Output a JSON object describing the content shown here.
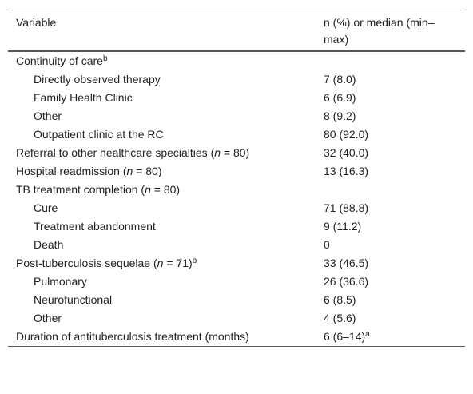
{
  "table": {
    "header": [
      "Variable",
      "n (%) or median (min–max)"
    ],
    "rows": [
      {
        "indent": false,
        "label": [
          {
            "text": "Continuity of care"
          },
          {
            "text": "b",
            "style": "sup"
          }
        ],
        "value": [
          {
            "text": ""
          }
        ]
      },
      {
        "indent": true,
        "label": [
          {
            "text": "Directly observed therapy"
          }
        ],
        "value": [
          {
            "text": "7 (8.0)"
          }
        ]
      },
      {
        "indent": true,
        "label": [
          {
            "text": "Family Health Clinic"
          }
        ],
        "value": [
          {
            "text": "6 (6.9)"
          }
        ]
      },
      {
        "indent": true,
        "label": [
          {
            "text": "Other"
          }
        ],
        "value": [
          {
            "text": "8 (9.2)"
          }
        ]
      },
      {
        "indent": true,
        "label": [
          {
            "text": "Outpatient clinic at the RC"
          }
        ],
        "value": [
          {
            "text": "80 (92.0)"
          }
        ]
      },
      {
        "indent": false,
        "label": [
          {
            "text": "Referral to other healthcare specialties ("
          },
          {
            "text": "n",
            "style": "italic"
          },
          {
            "text": " = 80)"
          }
        ],
        "value": [
          {
            "text": "32 (40.0)"
          }
        ]
      },
      {
        "indent": false,
        "label": [
          {
            "text": "Hospital readmission ("
          },
          {
            "text": "n",
            "style": "italic"
          },
          {
            "text": " = 80)"
          }
        ],
        "value": [
          {
            "text": "13 (16.3)"
          }
        ]
      },
      {
        "indent": false,
        "label": [
          {
            "text": "TB treatment completion ("
          },
          {
            "text": "n",
            "style": "italic"
          },
          {
            "text": " = 80)"
          }
        ],
        "value": [
          {
            "text": ""
          }
        ]
      },
      {
        "indent": true,
        "label": [
          {
            "text": "Cure"
          }
        ],
        "value": [
          {
            "text": "71 (88.8)"
          }
        ]
      },
      {
        "indent": true,
        "label": [
          {
            "text": "Treatment abandonment"
          }
        ],
        "value": [
          {
            "text": "9 (11.2)"
          }
        ]
      },
      {
        "indent": true,
        "label": [
          {
            "text": "Death"
          }
        ],
        "value": [
          {
            "text": "0"
          }
        ]
      },
      {
        "indent": false,
        "label": [
          {
            "text": "Post-tuberculosis sequelae ("
          },
          {
            "text": "n",
            "style": "italic"
          },
          {
            "text": " = 71)"
          },
          {
            "text": "b",
            "style": "sup"
          }
        ],
        "value": [
          {
            "text": "33 (46.5)"
          }
        ]
      },
      {
        "indent": true,
        "label": [
          {
            "text": "Pulmonary"
          }
        ],
        "value": [
          {
            "text": "26 (36.6)"
          }
        ]
      },
      {
        "indent": true,
        "label": [
          {
            "text": "Neurofunctional"
          }
        ],
        "value": [
          {
            "text": "6 (8.5)"
          }
        ]
      },
      {
        "indent": true,
        "label": [
          {
            "text": "Other"
          }
        ],
        "value": [
          {
            "text": "4 (5.6)"
          }
        ]
      },
      {
        "indent": false,
        "label": [
          {
            "text": "Duration of antituberculosis treatment (months)"
          }
        ],
        "value": [
          {
            "text": "6 (6–14)"
          },
          {
            "text": "a",
            "style": "sup"
          }
        ]
      }
    ]
  }
}
